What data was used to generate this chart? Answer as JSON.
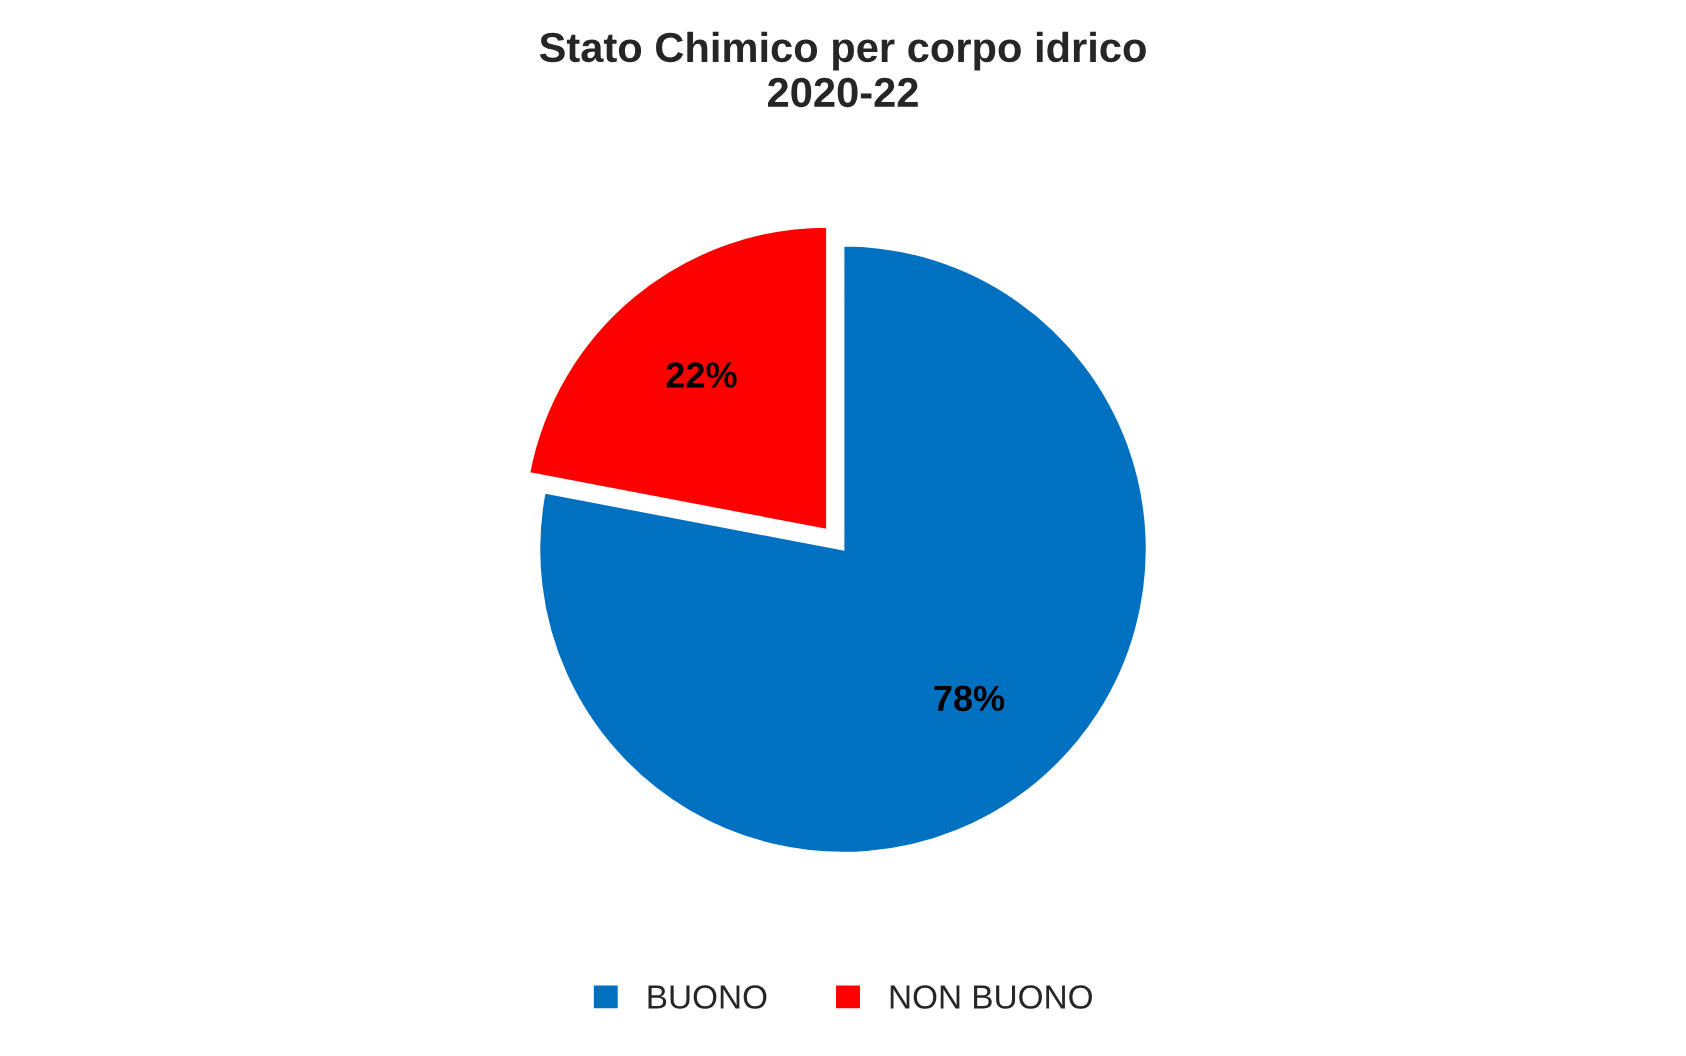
{
  "chart_data": {
    "type": "pie",
    "title": "Stato Chimico per corpo idrico\n2020-22",
    "categories": [
      "BUONO",
      "NON BUONO"
    ],
    "values": [
      78,
      22
    ],
    "colors": [
      "#0070c0",
      "#ff0000"
    ],
    "value_labels": [
      "78%",
      "22%"
    ],
    "legend": "bottom"
  }
}
